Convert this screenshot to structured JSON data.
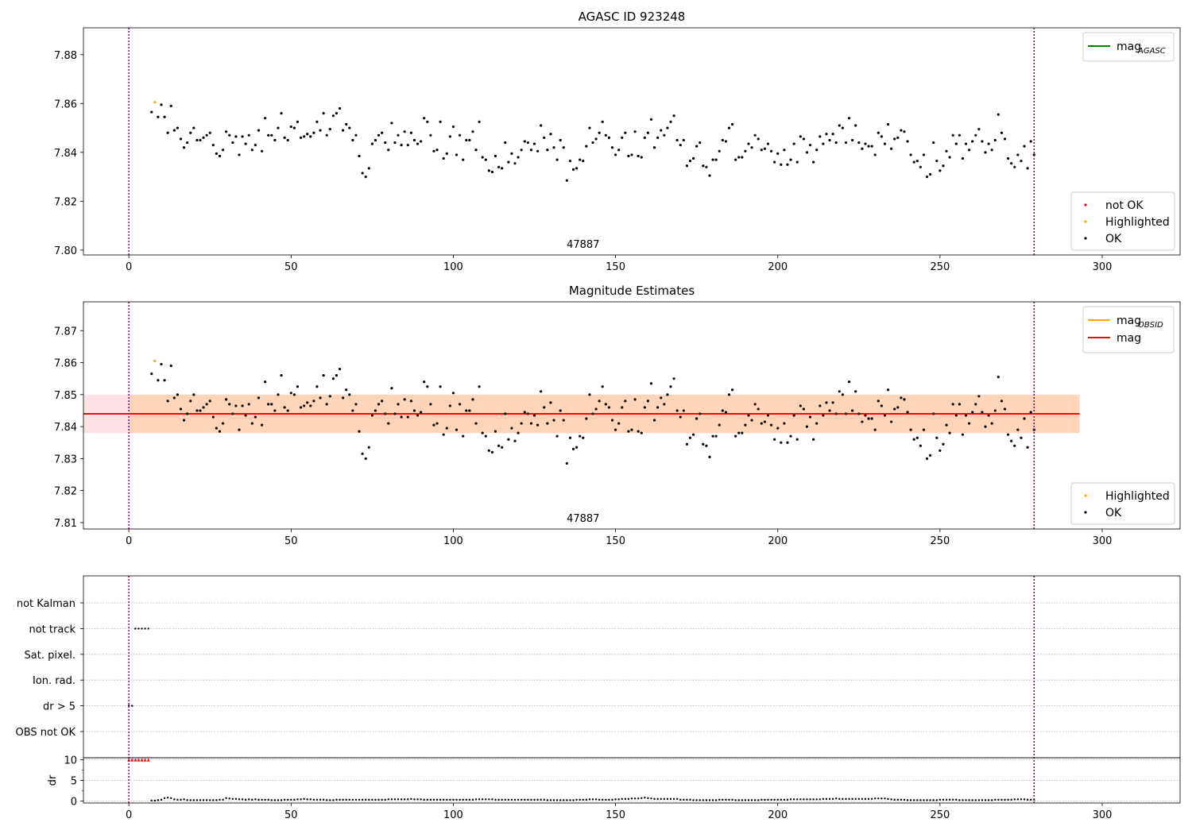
{
  "chart_data": [
    {
      "type": "scatter",
      "title": "AGASC ID 923248",
      "xlim": [
        -14,
        324
      ],
      "ylim": [
        7.798,
        7.891
      ],
      "x_ticks": [
        0,
        50,
        100,
        150,
        200,
        250,
        300
      ],
      "y_ticks": [
        7.8,
        7.82,
        7.84,
        7.86,
        7.88
      ],
      "y_tick_labels": [
        "7.80",
        "7.82",
        "7.84",
        "7.86",
        "7.88"
      ],
      "vlines": [
        0,
        279
      ],
      "vline_color": "#800080",
      "annotation": {
        "text": "47887",
        "x": 140
      },
      "legend_lines": [
        {
          "label_main": "mag",
          "label_sub": "AGASC",
          "color": "#008000"
        }
      ],
      "legend_points": [
        {
          "label": "not OK",
          "color": "#ff0000"
        },
        {
          "label": "Highlighted",
          "color": "#ffa500"
        },
        {
          "label": "OK",
          "color": "#000000"
        }
      ],
      "highlighted": {
        "x": [
          8
        ],
        "y": [
          7.8605
        ]
      },
      "ok_series_ref": "mag_points"
    },
    {
      "type": "scatter",
      "title": "Magnitude Estimates",
      "xlim": [
        -14,
        324
      ],
      "ylim": [
        7.808,
        7.879
      ],
      "x_ticks": [
        0,
        50,
        100,
        150,
        200,
        250,
        300
      ],
      "y_ticks": [
        7.81,
        7.82,
        7.83,
        7.84,
        7.85,
        7.86,
        7.87
      ],
      "y_tick_labels": [
        "7.81",
        "7.82",
        "7.83",
        "7.84",
        "7.85",
        "7.86",
        "7.87"
      ],
      "vlines": [
        0,
        279
      ],
      "vline_color": "#800080",
      "annotation": {
        "text": "47887",
        "x": 140
      },
      "mag_line": {
        "value": 7.844,
        "x_range": [
          -14,
          293
        ],
        "color": "#ff0000"
      },
      "mag_band": {
        "low": 7.838,
        "high": 7.85,
        "x_range": [
          -14,
          293
        ],
        "color": "#ffb6c1"
      },
      "obsid_band": {
        "low": 7.838,
        "high": 7.85,
        "x_range": [
          0,
          293
        ],
        "color": "#ffa500"
      },
      "legend_lines": [
        {
          "label_main": "mag",
          "label_sub": "OBSID",
          "color": "#ffa500"
        },
        {
          "label_main": "mag",
          "label_sub": "",
          "color": "#ff0000"
        }
      ],
      "legend_points": [
        {
          "label": "Highlighted",
          "color": "#ffa500"
        },
        {
          "label": "OK",
          "color": "#000000"
        }
      ],
      "highlighted": {
        "x": [
          8
        ],
        "y": [
          7.8605
        ]
      },
      "ok_series_ref": "mag_points"
    },
    {
      "type": "scatter",
      "title": "",
      "xlim": [
        -14,
        324
      ],
      "flag_rows": [
        "not Kalman",
        "not track",
        "Sat. pixel.",
        "Ion. rad.",
        "dr > 5",
        "OBS not OK"
      ],
      "flags": [
        {
          "row": "not track",
          "x": [
            2,
            3,
            4,
            5,
            6
          ]
        },
        {
          "row": "dr > 5",
          "x": [
            0,
            1
          ]
        }
      ],
      "dr_panel": {
        "ylabel": "dr",
        "ylim": [
          -0.5,
          10.5
        ],
        "y_ticks": [
          0,
          5,
          10
        ],
        "y_tick_labels": [
          "0",
          "5",
          "10"
        ],
        "capped_x": [
          0,
          1,
          2,
          3,
          4,
          5,
          6
        ],
        "capped_value": 10,
        "capped_color": "#ff0000"
      },
      "x_ticks": [
        0,
        50,
        100,
        150,
        200,
        250,
        300
      ],
      "vlines": [
        0,
        279
      ],
      "vline_color": "#800080"
    }
  ],
  "mag_points": {
    "x": [
      7,
      9,
      10,
      11,
      12,
      13,
      14,
      15,
      16,
      17,
      18,
      19,
      20,
      21,
      22,
      23,
      24,
      25,
      26,
      27,
      28,
      29,
      30,
      31,
      32,
      33,
      34,
      35,
      36,
      37,
      38,
      39,
      40,
      41,
      42,
      43,
      44,
      45,
      46,
      47,
      48,
      49,
      50,
      51,
      52,
      53,
      54,
      55,
      56,
      57,
      58,
      59,
      60,
      61,
      62,
      63,
      64,
      65,
      66,
      67,
      68,
      69,
      70,
      71,
      72,
      73,
      74,
      75,
      76,
      77,
      78,
      79,
      80,
      81,
      82,
      83,
      84,
      85,
      86,
      87,
      88,
      89,
      90,
      91,
      92,
      93,
      94,
      95,
      96,
      97,
      98,
      99,
      100,
      101,
      102,
      103,
      104,
      105,
      106,
      107,
      108,
      109,
      110,
      111,
      112,
      113,
      114,
      115,
      116,
      117,
      118,
      119,
      120,
      121,
      122,
      123,
      124,
      125,
      126,
      127,
      128,
      129,
      130,
      131,
      132,
      133,
      134,
      135,
      136,
      137,
      138,
      139,
      140,
      141,
      142,
      143,
      144,
      145,
      146,
      147,
      148,
      149,
      150,
      151,
      152,
      153,
      154,
      155,
      156,
      157,
      158,
      159,
      160,
      161,
      162,
      163,
      164,
      165,
      166,
      167,
      168,
      169,
      170,
      171,
      172,
      173,
      174,
      175,
      176,
      177,
      178,
      179,
      180,
      181,
      182,
      183,
      184,
      185,
      186,
      187,
      188,
      189,
      190,
      191,
      192,
      193,
      194,
      195,
      196,
      197,
      198,
      199,
      200,
      201,
      202,
      203,
      204,
      205,
      206,
      207,
      208,
      209,
      210,
      211,
      212,
      213,
      214,
      215,
      216,
      217,
      218,
      219,
      220,
      221,
      222,
      223,
      224,
      225,
      226,
      227,
      228,
      229,
      230,
      231,
      232,
      233,
      234,
      235,
      236,
      237,
      238,
      239,
      240,
      241,
      242,
      243,
      244,
      245,
      246,
      247,
      248,
      249,
      250,
      251,
      252,
      253,
      254,
      255,
      256,
      257,
      258,
      259,
      260,
      261,
      262,
      263,
      264,
      265,
      266,
      267,
      268,
      269,
      270,
      271,
      272,
      273,
      274,
      275,
      276,
      277,
      278,
      279
    ],
    "y": [
      7.8565,
      7.8545,
      7.8595,
      7.8545,
      7.848,
      7.859,
      7.849,
      7.85,
      7.8455,
      7.842,
      7.844,
      7.848,
      7.85,
      7.845,
      7.845,
      7.846,
      7.847,
      7.848,
      7.843,
      7.8395,
      7.8385,
      7.841,
      7.8485,
      7.847,
      7.844,
      7.8465,
      7.839,
      7.8465,
      7.8435,
      7.847,
      7.841,
      7.843,
      7.849,
      7.8405,
      7.854,
      7.847,
      7.847,
      7.845,
      7.85,
      7.856,
      7.846,
      7.845,
      7.8505,
      7.85,
      7.8525,
      7.846,
      7.8465,
      7.8475,
      7.8465,
      7.848,
      7.8525,
      7.849,
      7.856,
      7.847,
      7.8495,
      7.855,
      7.856,
      7.858,
      7.849,
      7.8515,
      7.85,
      7.845,
      7.847,
      7.8385,
      7.8315,
      7.83,
      7.8335,
      7.8435,
      7.845,
      7.847,
      7.848,
      7.844,
      7.841,
      7.852,
      7.844,
      7.847,
      7.843,
      7.8485,
      7.843,
      7.848,
      7.845,
      7.8435,
      7.8445,
      7.854,
      7.8525,
      7.847,
      7.8405,
      7.841,
      7.8525,
      7.8375,
      7.8395,
      7.8465,
      7.8505,
      7.839,
      7.847,
      7.837,
      7.845,
      7.845,
      7.8485,
      7.841,
      7.8525,
      7.838,
      7.837,
      7.8325,
      7.832,
      7.8385,
      7.834,
      7.8335,
      7.844,
      7.836,
      7.8395,
      7.8355,
      7.838,
      7.841,
      7.8445,
      7.844,
      7.841,
      7.8435,
      7.8405,
      7.851,
      7.846,
      7.841,
      7.8475,
      7.842,
      7.837,
      7.845,
      7.842,
      7.8285,
      7.8365,
      7.833,
      7.8335,
      7.837,
      7.8365,
      7.8425,
      7.85,
      7.844,
      7.8455,
      7.848,
      7.8525,
      7.847,
      7.846,
      7.842,
      7.839,
      7.841,
      7.846,
      7.848,
      7.8385,
      7.839,
      7.8485,
      7.8385,
      7.838,
      7.846,
      7.848,
      7.8535,
      7.842,
      7.846,
      7.849,
      7.847,
      7.85,
      7.8525,
      7.855,
      7.845,
      7.843,
      7.845,
      7.8345,
      7.8365,
      7.8375,
      7.8425,
      7.844,
      7.8345,
      7.834,
      7.8305,
      7.837,
      7.837,
      7.8405,
      7.845,
      7.8445,
      7.85,
      7.8515,
      7.837,
      7.838,
      7.838,
      7.8405,
      7.8435,
      7.842,
      7.847,
      7.8455,
      7.841,
      7.8415,
      7.8435,
      7.8405,
      7.836,
      7.8395,
      7.835,
      7.841,
      7.835,
      7.837,
      7.8435,
      7.836,
      7.8465,
      7.8455,
      7.84,
      7.843,
      7.836,
      7.841,
      7.8465,
      7.8435,
      7.8475,
      7.845,
      7.8475,
      7.844,
      7.851,
      7.85,
      7.844,
      7.854,
      7.845,
      7.851,
      7.844,
      7.8415,
      7.8435,
      7.8425,
      7.8425,
      7.839,
      7.848,
      7.8465,
      7.8435,
      7.8515,
      7.8415,
      7.8455,
      7.846,
      7.849,
      7.8485,
      7.8445,
      7.839,
      7.836,
      7.8365,
      7.834,
      7.839,
      7.83,
      7.831,
      7.844,
      7.8365,
      7.8325,
      7.8345,
      7.8405,
      7.838,
      7.847,
      7.8435,
      7.847,
      7.8375,
      7.8435,
      7.841,
      7.8445,
      7.847,
      7.8495,
      7.8445,
      7.84,
      7.8435,
      7.841,
      7.845,
      7.8555,
      7.848,
      7.8455,
      7.8375,
      7.8355,
      7.834,
      7.839,
      7.8365,
      7.8425,
      7.8335,
      7.8445,
      7.839
    ]
  },
  "dr_points": {
    "x": [
      7,
      8,
      9,
      10,
      11,
      12,
      13,
      14,
      15,
      16,
      17,
      18,
      19,
      20,
      21,
      22,
      23,
      24,
      25,
      26,
      27,
      28,
      29,
      30,
      31,
      32,
      33,
      34,
      35,
      36,
      37,
      38,
      39,
      40,
      41,
      42,
      43,
      44,
      45,
      46,
      47,
      48,
      49,
      50,
      51,
      52,
      53,
      54,
      55,
      56,
      57,
      58,
      59,
      60,
      61,
      62,
      63,
      64,
      65,
      66,
      67,
      68,
      69,
      70,
      71,
      72,
      73,
      74,
      75,
      76,
      77,
      78,
      79,
      80,
      81,
      82,
      83,
      84,
      85,
      86,
      87,
      88,
      89,
      90,
      91,
      92,
      93,
      94,
      95,
      96,
      97,
      98,
      99,
      100,
      101,
      102,
      103,
      104,
      105,
      106,
      107,
      108,
      109,
      110,
      111,
      112,
      113,
      114,
      115,
      116,
      117,
      118,
      119,
      120,
      121,
      122,
      123,
      124,
      125,
      126,
      127,
      128,
      129,
      130,
      131,
      132,
      133,
      134,
      135,
      136,
      137,
      138,
      139,
      140,
      141,
      142,
      143,
      144,
      145,
      146,
      147,
      148,
      149,
      150,
      151,
      152,
      153,
      154,
      155,
      156,
      157,
      158,
      159,
      160,
      161,
      162,
      163,
      164,
      165,
      166,
      167,
      168,
      169,
      170,
      171,
      172,
      173,
      174,
      175,
      176,
      177,
      178,
      179,
      180,
      181,
      182,
      183,
      184,
      185,
      186,
      187,
      188,
      189,
      190,
      191,
      192,
      193,
      194,
      195,
      196,
      197,
      198,
      199,
      200,
      201,
      202,
      203,
      204,
      205,
      206,
      207,
      208,
      209,
      210,
      211,
      212,
      213,
      214,
      215,
      216,
      217,
      218,
      219,
      220,
      221,
      222,
      223,
      224,
      225,
      226,
      227,
      228,
      229,
      230,
      231,
      232,
      233,
      234,
      235,
      236,
      237,
      238,
      239,
      240,
      241,
      242,
      243,
      244,
      245,
      246,
      247,
      248,
      249,
      250,
      251,
      252,
      253,
      254,
      255,
      256,
      257,
      258,
      259,
      260,
      261,
      262,
      263,
      264,
      265,
      266,
      267,
      268,
      269,
      270,
      271,
      272,
      273,
      274,
      275,
      276,
      277,
      278,
      279
    ],
    "y": [
      0.1,
      0.1,
      0.2,
      0.3,
      0.7,
      0.8,
      0.7,
      0.4,
      0.3,
      0.3,
      0.4,
      0.2,
      0.2,
      0.2,
      0.2,
      0.2,
      0.2,
      0.2,
      0.2,
      0.2,
      0.2,
      0.3,
      0.3,
      0.7,
      0.6,
      0.5,
      0.5,
      0.4,
      0.4,
      0.3,
      0.4,
      0.3,
      0.4,
      0.3,
      0.3,
      0.3,
      0.3,
      0.2,
      0.2,
      0.2,
      0.2,
      0.3,
      0.3,
      0.3,
      0.3,
      0.4,
      0.4,
      0.5,
      0.4,
      0.4,
      0.3,
      0.3,
      0.3,
      0.3,
      0.2,
      0.2,
      0.2,
      0.3,
      0.3,
      0.3,
      0.3,
      0.3,
      0.3,
      0.3,
      0.3,
      0.3,
      0.3,
      0.3,
      0.3,
      0.3,
      0.3,
      0.3,
      0.3,
      0.4,
      0.4,
      0.4,
      0.4,
      0.4,
      0.4,
      0.4,
      0.5,
      0.4,
      0.4,
      0.4,
      0.3,
      0.3,
      0.3,
      0.3,
      0.3,
      0.3,
      0.3,
      0.3,
      0.3,
      0.3,
      0.3,
      0.3,
      0.3,
      0.3,
      0.3,
      0.3,
      0.4,
      0.4,
      0.4,
      0.4,
      0.4,
      0.4,
      0.3,
      0.3,
      0.3,
      0.3,
      0.3,
      0.3,
      0.3,
      0.3,
      0.3,
      0.3,
      0.3,
      0.3,
      0.3,
      0.3,
      0.3,
      0.3,
      0.2,
      0.2,
      0.2,
      0.2,
      0.2,
      0.2,
      0.2,
      0.2,
      0.2,
      0.3,
      0.3,
      0.3,
      0.3,
      0.4,
      0.4,
      0.4,
      0.3,
      0.3,
      0.3,
      0.3,
      0.3,
      0.4,
      0.4,
      0.5,
      0.5,
      0.5,
      0.6,
      0.6,
      0.6,
      0.7,
      0.8,
      0.7,
      0.6,
      0.5,
      0.5,
      0.5,
      0.5,
      0.5,
      0.5,
      0.5,
      0.5,
      0.3,
      0.3,
      0.3,
      0.3,
      0.2,
      0.2,
      0.2,
      0.2,
      0.2,
      0.2,
      0.2,
      0.2,
      0.3,
      0.3,
      0.3,
      0.3,
      0.3,
      0.2,
      0.2,
      0.2,
      0.2,
      0.2,
      0.2,
      0.2,
      0.2,
      0.3,
      0.3,
      0.3,
      0.3,
      0.3,
      0.3,
      0.3,
      0.3,
      0.3,
      0.4,
      0.4,
      0.4,
      0.4,
      0.4,
      0.4,
      0.4,
      0.4,
      0.4,
      0.4,
      0.5,
      0.5,
      0.5,
      0.5,
      0.6,
      0.5,
      0.5,
      0.5,
      0.5,
      0.5,
      0.5,
      0.5,
      0.5,
      0.5,
      0.5,
      0.5,
      0.6,
      0.6,
      0.6,
      0.6,
      0.5,
      0.4,
      0.3,
      0.3,
      0.3,
      0.3,
      0.2,
      0.2,
      0.2,
      0.2,
      0.2,
      0.2,
      0.2,
      0.2,
      0.2,
      0.2,
      0.3,
      0.3,
      0.3,
      0.3,
      0.3,
      0.3,
      0.2,
      0.2,
      0.2,
      0.2,
      0.2,
      0.2,
      0.2,
      0.2,
      0.2,
      0.2,
      0.2,
      0.3,
      0.3,
      0.3,
      0.3,
      0.3,
      0.3,
      0.4,
      0.4,
      0.4,
      0.4,
      0.3,
      0.3,
      0.3
    ]
  }
}
